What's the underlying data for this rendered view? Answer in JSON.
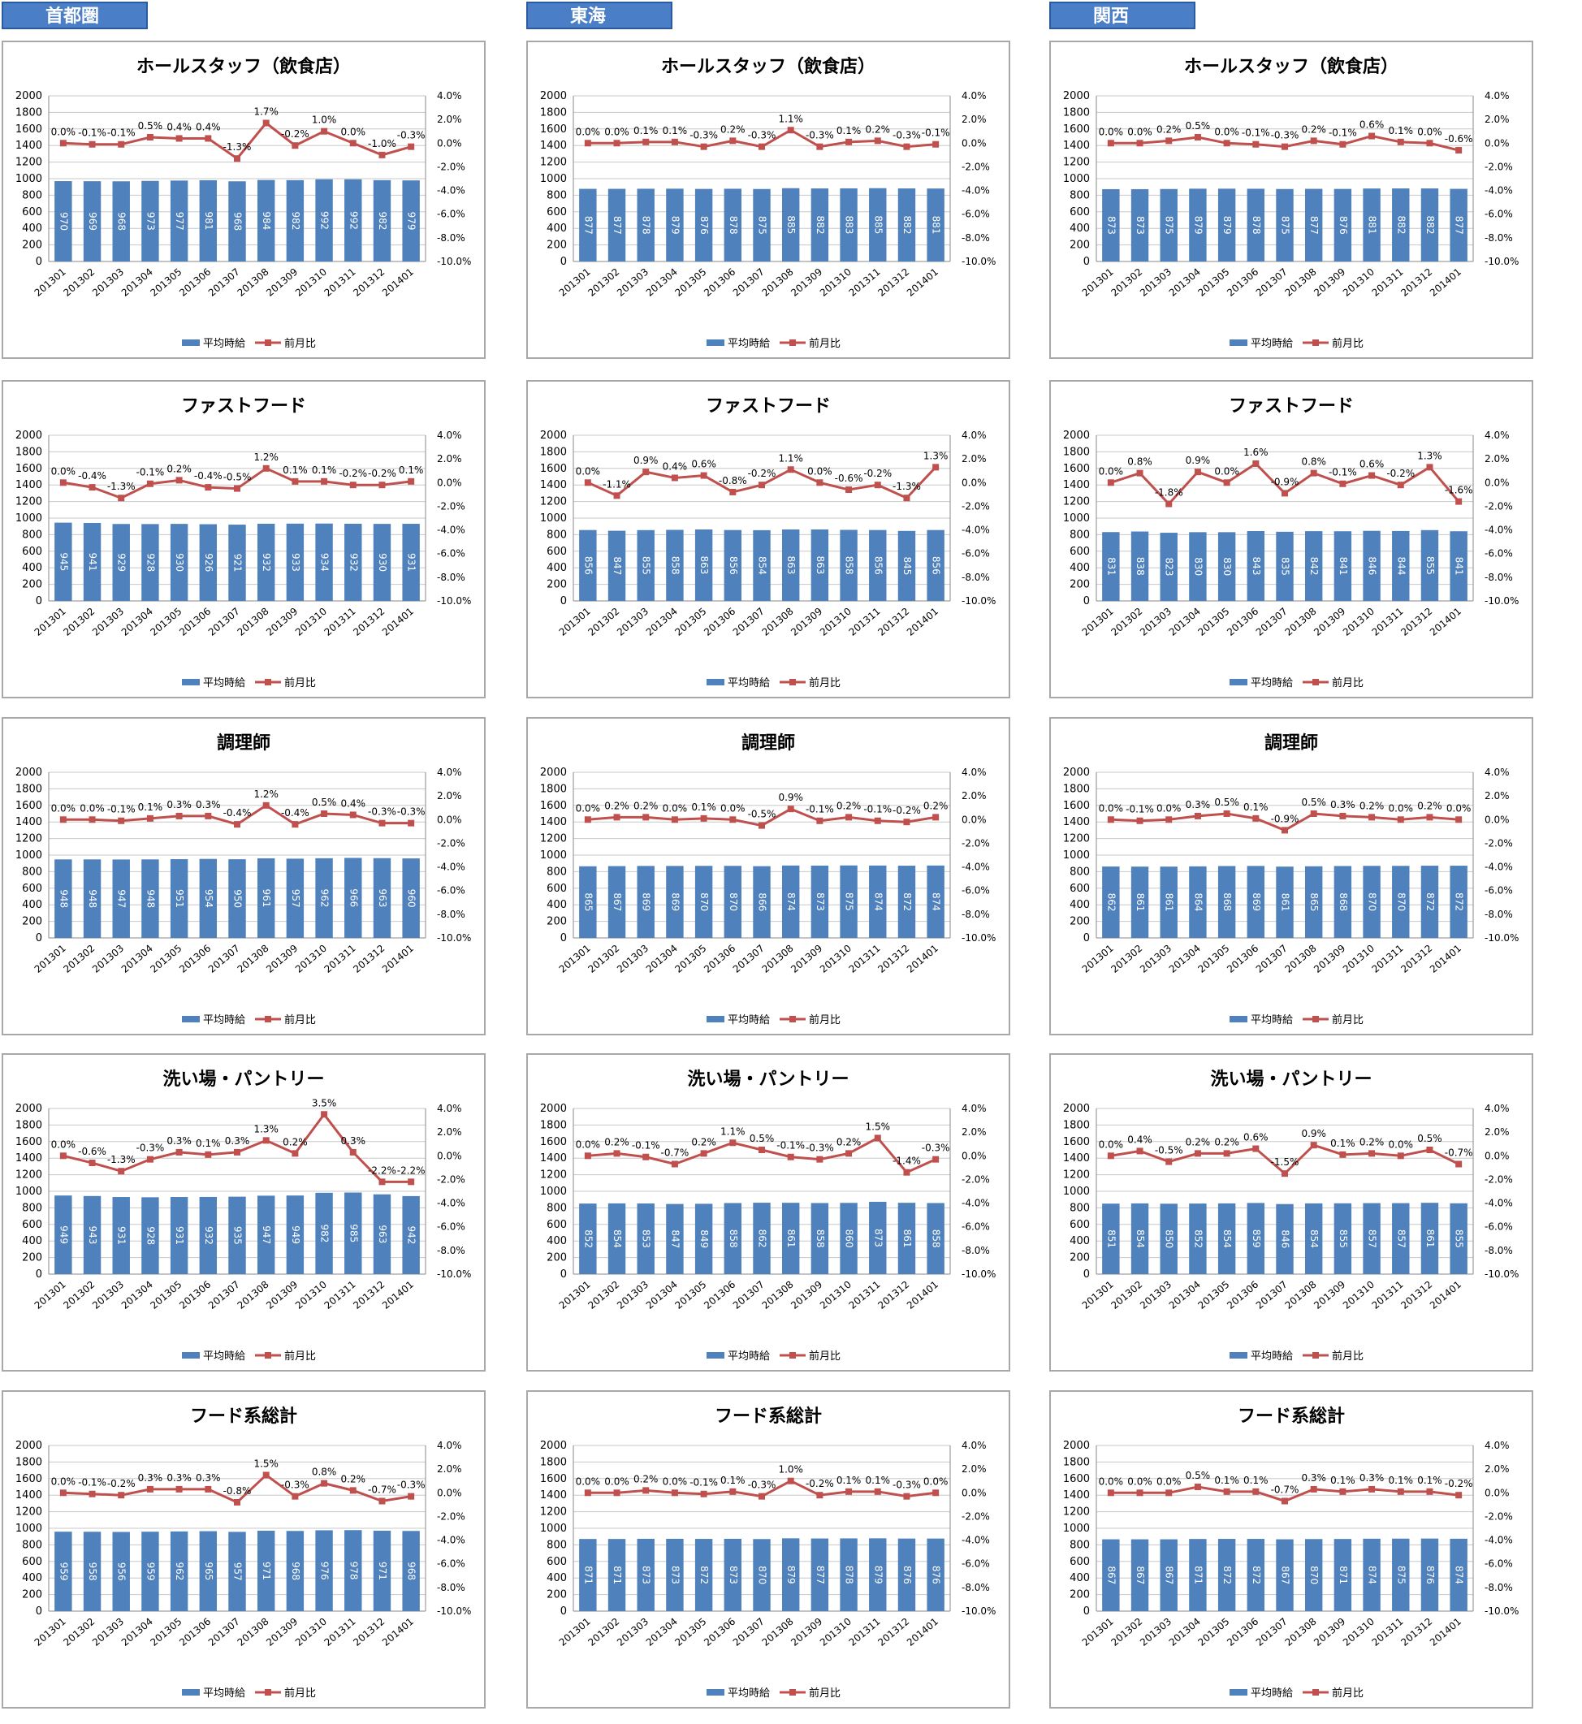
{
  "regions": [
    {
      "name": "首都圏",
      "charts": [
        {
          "title": "ホールスタッフ（飲食店）",
          "values": [
            970,
            969,
            968,
            973,
            977,
            981,
            968,
            984,
            982,
            992,
            992,
            982,
            979
          ],
          "pct": [
            0.0,
            -0.1,
            -0.1,
            0.5,
            0.4,
            0.4,
            -1.3,
            1.7,
            -0.2,
            1.0,
            0.0,
            -1.0,
            -0.3
          ]
        },
        {
          "title": "ファストフード",
          "values": [
            945,
            941,
            929,
            928,
            930,
            926,
            921,
            932,
            933,
            934,
            932,
            930,
            931
          ],
          "pct": [
            0.0,
            -0.4,
            -1.3,
            -0.1,
            0.2,
            -0.4,
            -0.5,
            1.2,
            0.1,
            0.1,
            -0.2,
            -0.2,
            0.1
          ]
        },
        {
          "title": "調理師",
          "values": [
            948,
            948,
            947,
            948,
            951,
            954,
            950,
            961,
            957,
            962,
            966,
            963,
            960
          ],
          "pct": [
            0.0,
            0.0,
            -0.1,
            0.1,
            0.3,
            0.3,
            -0.4,
            1.2,
            -0.4,
            0.5,
            0.4,
            -0.3,
            -0.3
          ]
        },
        {
          "title": "洗い場・パントリー",
          "values": [
            949,
            943,
            931,
            928,
            931,
            932,
            935,
            947,
            949,
            982,
            985,
            963,
            942
          ],
          "pct": [
            0.0,
            -0.6,
            -1.3,
            -0.3,
            0.3,
            0.1,
            0.3,
            1.3,
            0.2,
            3.5,
            0.3,
            -2.2,
            -2.2
          ]
        },
        {
          "title": "フード系総計",
          "values": [
            959,
            958,
            956,
            959,
            962,
            965,
            957,
            971,
            968,
            976,
            978,
            971,
            968
          ],
          "pct": [
            0.0,
            -0.1,
            -0.2,
            0.3,
            0.3,
            0.3,
            -0.8,
            1.5,
            -0.3,
            0.8,
            0.2,
            -0.7,
            -0.3
          ]
        }
      ]
    },
    {
      "name": "東海",
      "charts": [
        {
          "title": "ホールスタッフ（飲食店）",
          "values": [
            877,
            877,
            878,
            879,
            876,
            878,
            875,
            885,
            882,
            883,
            885,
            882,
            881
          ],
          "pct": [
            0.0,
            0.0,
            0.1,
            0.1,
            -0.3,
            0.2,
            -0.3,
            1.1,
            -0.3,
            0.1,
            0.2,
            -0.3,
            -0.1
          ]
        },
        {
          "title": "ファストフード",
          "values": [
            856,
            847,
            855,
            858,
            863,
            856,
            854,
            863,
            863,
            858,
            856,
            845,
            856
          ],
          "pct": [
            0.0,
            -1.1,
            0.9,
            0.4,
            0.6,
            -0.8,
            -0.2,
            1.1,
            0.0,
            -0.6,
            -0.2,
            -1.3,
            1.3
          ]
        },
        {
          "title": "調理師",
          "values": [
            865,
            867,
            869,
            869,
            870,
            870,
            866,
            874,
            873,
            875,
            874,
            872,
            874
          ],
          "pct": [
            0.0,
            0.2,
            0.2,
            0.0,
            0.1,
            0.0,
            -0.5,
            0.9,
            -0.1,
            0.2,
            -0.1,
            -0.2,
            0.2
          ]
        },
        {
          "title": "洗い場・パントリー",
          "values": [
            852,
            854,
            853,
            847,
            849,
            858,
            862,
            861,
            858,
            860,
            873,
            861,
            858
          ],
          "pct": [
            0.0,
            0.2,
            -0.1,
            -0.7,
            0.2,
            1.1,
            0.5,
            -0.1,
            -0.3,
            0.2,
            1.5,
            -1.4,
            -0.3
          ]
        },
        {
          "title": "フード系総計",
          "values": [
            871,
            871,
            873,
            873,
            872,
            873,
            870,
            879,
            877,
            878,
            879,
            876,
            876
          ],
          "pct": [
            0.0,
            0.0,
            0.2,
            0.0,
            -0.1,
            0.1,
            -0.3,
            1.0,
            -0.2,
            0.1,
            0.1,
            -0.3,
            0.0
          ]
        }
      ]
    },
    {
      "name": "関西",
      "charts": [
        {
          "title": "ホールスタッフ（飲食店）",
          "values": [
            873,
            873,
            875,
            879,
            879,
            878,
            875,
            877,
            876,
            881,
            882,
            882,
            877
          ],
          "pct": [
            0.0,
            0.0,
            0.2,
            0.5,
            0.0,
            -0.1,
            -0.3,
            0.2,
            -0.1,
            0.6,
            0.1,
            0.0,
            -0.6
          ]
        },
        {
          "title": "ファストフード",
          "values": [
            831,
            838,
            823,
            830,
            830,
            843,
            835,
            842,
            841,
            846,
            844,
            855,
            841
          ],
          "pct": [
            0.0,
            0.8,
            -1.8,
            0.9,
            0.0,
            1.6,
            -0.9,
            0.8,
            -0.1,
            0.6,
            -0.2,
            1.3,
            -1.6
          ]
        },
        {
          "title": "調理師",
          "values": [
            862,
            861,
            861,
            864,
            868,
            869,
            861,
            865,
            868,
            870,
            870,
            872,
            872
          ],
          "pct": [
            0.0,
            -0.1,
            0.0,
            0.3,
            0.5,
            0.1,
            -0.9,
            0.5,
            0.3,
            0.2,
            0.0,
            0.2,
            0.0
          ]
        },
        {
          "title": "洗い場・パントリー",
          "values": [
            851,
            854,
            850,
            852,
            854,
            859,
            846,
            854,
            855,
            857,
            857,
            861,
            855
          ],
          "pct": [
            0.0,
            0.4,
            -0.5,
            0.2,
            0.2,
            0.6,
            -1.5,
            0.9,
            0.1,
            0.2,
            0.0,
            0.5,
            -0.7
          ]
        },
        {
          "title": "フード系総計",
          "values": [
            867,
            867,
            867,
            871,
            872,
            872,
            867,
            870,
            871,
            874,
            875,
            876,
            874
          ],
          "pct": [
            0.0,
            0.0,
            0.0,
            0.5,
            0.1,
            0.1,
            -0.7,
            0.3,
            0.1,
            0.3,
            0.1,
            0.1,
            -0.2
          ]
        }
      ]
    }
  ],
  "chart_data": {
    "type": "bar",
    "categories": [
      "201301",
      "201302",
      "201303",
      "201304",
      "201305",
      "201306",
      "201307",
      "201308",
      "201309",
      "201310",
      "201311",
      "201312",
      "201401"
    ],
    "series": [
      {
        "name": "平均時給",
        "type": "bar",
        "axis": "left"
      },
      {
        "name": "前月比",
        "type": "line",
        "axis": "right"
      }
    ],
    "ylim": [
      0,
      2000
    ],
    "yticks": [
      "0",
      "200",
      "400",
      "600",
      "800",
      "1000",
      "1200",
      "1400",
      "1600",
      "1800",
      "2000"
    ],
    "y2lim": [
      -10,
      4
    ],
    "y2ticks": [
      "-10.0%",
      "-8.0%",
      "-6.0%",
      "-4.0%",
      "-2.0%",
      "0.0%",
      "2.0%",
      "4.0%"
    ],
    "grid": true,
    "legend": "bottom",
    "bar_color": "#4f81bd",
    "line_color": "#c0504d"
  }
}
